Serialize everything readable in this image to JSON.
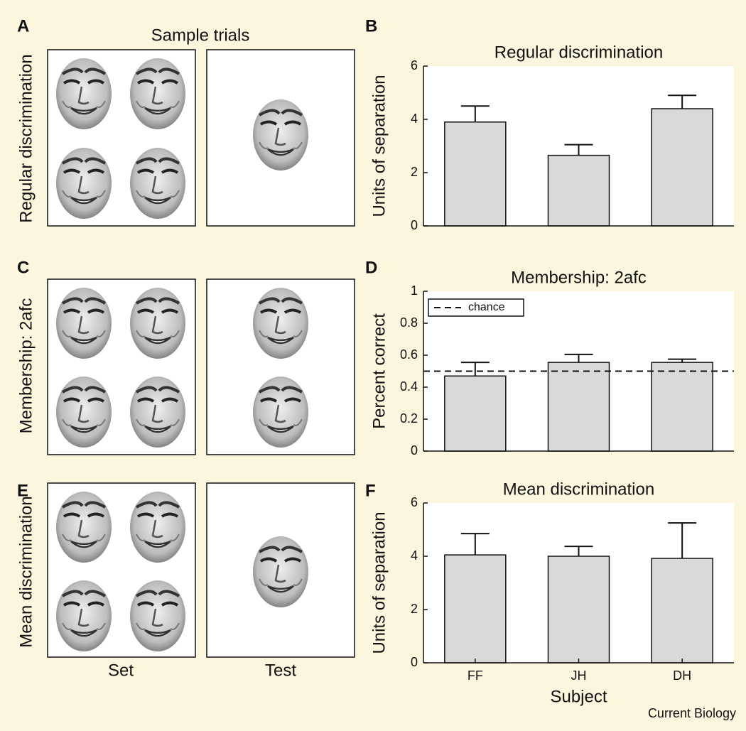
{
  "panel_labels": [
    "A",
    "B",
    "C",
    "D",
    "E",
    "F"
  ],
  "sample_title": "Sample trials",
  "row_labels": [
    "Regular discrimination",
    "Membership: 2afc",
    "Mean discrimination"
  ],
  "column_labels": [
    "Set",
    "Test"
  ],
  "credit": "Current Biology",
  "chart_data": [
    {
      "type": "bar",
      "title": "Regular discrimination",
      "ylabel": "Units of separation",
      "categories": [
        null,
        null,
        null
      ],
      "values": [
        3.9,
        2.65,
        4.4
      ],
      "errors": [
        0.6,
        0.4,
        0.5
      ],
      "color": "#d9d9d9",
      "ylim": [
        0,
        6
      ],
      "yticks": [
        0,
        2,
        4,
        6
      ]
    },
    {
      "type": "bar",
      "title": "Membership: 2afc",
      "ylabel": "Percent correct",
      "categories": [
        null,
        null,
        null
      ],
      "values": [
        0.47,
        0.555,
        0.555
      ],
      "errors": [
        0.085,
        0.05,
        0.02
      ],
      "color": "#d9d9d9",
      "ylim": [
        0,
        1
      ],
      "yticks": [
        0,
        0.2,
        0.4,
        0.6,
        0.8,
        1
      ],
      "reference_lines": [
        {
          "name": "chance",
          "value": 0.5,
          "style": "dashed"
        }
      ],
      "legend": "upper left"
    },
    {
      "type": "bar",
      "title": "Mean discrimination",
      "ylabel": "Units of separation",
      "xlabel": "Subject",
      "categories": [
        "FF",
        "JH",
        "DH"
      ],
      "values": [
        4.05,
        4.0,
        3.92
      ],
      "errors": [
        0.8,
        0.37,
        1.33
      ],
      "color": "#d9d9d9",
      "ylim": [
        0,
        6
      ],
      "yticks": [
        0,
        2,
        4,
        6
      ]
    }
  ]
}
